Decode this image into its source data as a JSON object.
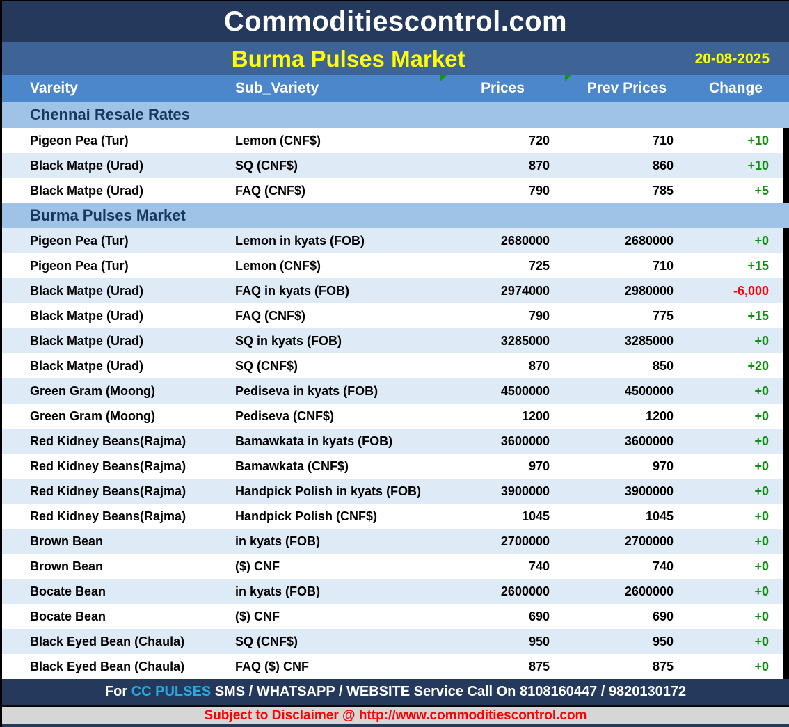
{
  "header": {
    "site_title": "Commoditiescontrol.com",
    "report_title": "Burma Pulses Market",
    "date": "20-08-2025"
  },
  "columns": {
    "variety": "Vareity",
    "sub_variety": "Sub_Variety",
    "prices": "Prices",
    "prev_prices": "Prev Prices",
    "change": "Change"
  },
  "sections": [
    {
      "title": "Chennai Resale Rates",
      "rows": [
        {
          "variety": "Pigeon Pea (Tur)",
          "sub_variety": "Lemon (CNF$)",
          "price": "720",
          "prev_price": "710",
          "change": "+10"
        },
        {
          "variety": "Black Matpe (Urad)",
          "sub_variety": "SQ (CNF$)",
          "price": "870",
          "prev_price": "860",
          "change": "+10"
        },
        {
          "variety": "Black Matpe (Urad)",
          "sub_variety": "FAQ (CNF$)",
          "price": "790",
          "prev_price": "785",
          "change": "+5"
        }
      ]
    },
    {
      "title": "Burma Pulses Market",
      "rows": [
        {
          "variety": "Pigeon Pea (Tur)",
          "sub_variety": "Lemon in kyats (FOB)",
          "price": "2680000",
          "prev_price": "2680000",
          "change": "+0"
        },
        {
          "variety": "Pigeon Pea (Tur)",
          "sub_variety": "Lemon (CNF$)",
          "price": "725",
          "prev_price": "710",
          "change": "+15"
        },
        {
          "variety": "Black Matpe (Urad)",
          "sub_variety": "FAQ in kyats (FOB)",
          "price": "2974000",
          "prev_price": "2980000",
          "change": "-6,000"
        },
        {
          "variety": "Black Matpe (Urad)",
          "sub_variety": "FAQ (CNF$)",
          "price": "790",
          "prev_price": "775",
          "change": "+15"
        },
        {
          "variety": "Black Matpe (Urad)",
          "sub_variety": "SQ in kyats (FOB)",
          "price": "3285000",
          "prev_price": "3285000",
          "change": "+0"
        },
        {
          "variety": "Black Matpe (Urad)",
          "sub_variety": "SQ (CNF$)",
          "price": "870",
          "prev_price": "850",
          "change": "+20"
        },
        {
          "variety": "Green Gram (Moong)",
          "sub_variety": "Pediseva in kyats (FOB)",
          "price": "4500000",
          "prev_price": "4500000",
          "change": "+0"
        },
        {
          "variety": "Green Gram (Moong)",
          "sub_variety": "Pediseva (CNF$)",
          "price": "1200",
          "prev_price": "1200",
          "change": "+0"
        },
        {
          "variety": "Red Kidney Beans(Rajma)",
          "sub_variety": "Bamawkata in kyats (FOB)",
          "price": "3600000",
          "prev_price": "3600000",
          "change": "+0"
        },
        {
          "variety": "Red Kidney Beans(Rajma)",
          "sub_variety": "Bamawkata (CNF$)",
          "price": "970",
          "prev_price": "970",
          "change": "+0"
        },
        {
          "variety": "Red Kidney Beans(Rajma)",
          "sub_variety": "Handpick Polish in kyats (FOB)",
          "price": "3900000",
          "prev_price": "3900000",
          "change": "+0"
        },
        {
          "variety": "Red Kidney Beans(Rajma)",
          "sub_variety": "Handpick Polish (CNF$)",
          "price": "1045",
          "prev_price": "1045",
          "change": "+0"
        },
        {
          "variety": "Brown Bean",
          "sub_variety": "in kyats (FOB)",
          "price": "2700000",
          "prev_price": "2700000",
          "change": "+0"
        },
        {
          "variety": "Brown Bean",
          "sub_variety": "($) CNF",
          "price": "740",
          "prev_price": "740",
          "change": "+0"
        },
        {
          "variety": "Bocate Bean",
          "sub_variety": "in kyats (FOB)",
          "price": "2600000",
          "prev_price": "2600000",
          "change": "+0"
        },
        {
          "variety": "Bocate Bean",
          "sub_variety": "($) CNF",
          "price": "690",
          "prev_price": "690",
          "change": "+0"
        },
        {
          "variety": "Black Eyed Bean (Chaula)",
          "sub_variety": "SQ (CNF$)",
          "price": "950",
          "prev_price": "950",
          "change": "+0"
        },
        {
          "variety": "Black Eyed Bean (Chaula)",
          "sub_variety": "FAQ ($) CNF",
          "price": "875",
          "prev_price": "875",
          "change": "+0"
        }
      ]
    }
  ],
  "footer": {
    "service_prefix": "For ",
    "service_brand": "CC PULSES",
    "service_text": " SMS / WHATSAPP / WEBSITE Service Call On 8108160447 / 9820130172",
    "disclaimer_prefix": "Subject to Disclaimer @ ",
    "disclaimer_url": "http://www.commoditiescontrol.com"
  },
  "colors": {
    "header_navy": "#24395B",
    "title_bar_blue": "#3E6396",
    "column_header_blue": "#4C86CB",
    "section_header_blue": "#9FC3E6",
    "alt_row_blue": "#DEEAF6",
    "title_yellow": "#FFFF00",
    "change_up_green": "#0B900B",
    "change_down_red": "#FF0000",
    "brand_cyan": "#29A9E0",
    "flag_green": "#149414",
    "disclaimer_red": "#FF0000",
    "disclaimer_gray": "#D6D6D6"
  }
}
